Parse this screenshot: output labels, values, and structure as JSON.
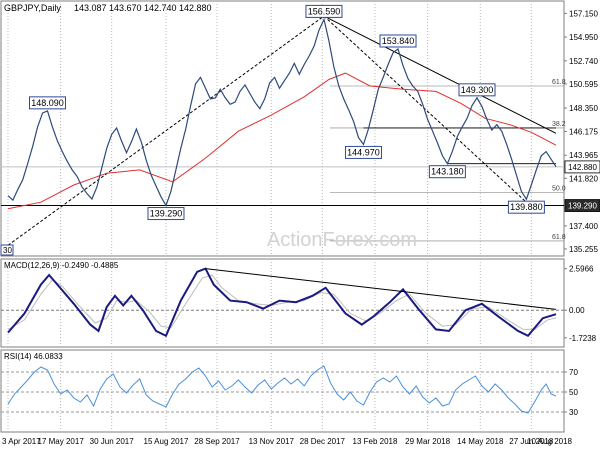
{
  "chart_data": {
    "type": "line",
    "title": "GBPJPY,Daily",
    "ohlc": {
      "open": "143.087",
      "high": "143.670",
      "low": "142.740",
      "close": "142.880"
    },
    "watermark": "ActionForex.com",
    "x_ticks": [
      "3 Apr 2017",
      "17 May 2017",
      "30 Jun 2017",
      "15 Aug 2017",
      "28 Sep 2017",
      "13 Nov 2017",
      "28 Dec 2017",
      "13 Feb 2018",
      "29 Mar 2018",
      "14 May 2018",
      "27 Jun 2018",
      "10 Aug 2018"
    ],
    "price_axis": {
      "ylim": [
        134.6,
        158.3
      ],
      "ticks": [
        "157.150",
        "154.950",
        "152.740",
        "150.595",
        "148.350",
        "146.175",
        "143.965",
        "141.820",
        "137.400",
        "135.255"
      ]
    },
    "price_series": [
      {
        "d": 0,
        "v": 140.2
      },
      {
        "d": 3,
        "v": 139.8
      },
      {
        "d": 6,
        "v": 140.8
      },
      {
        "d": 9,
        "v": 141.7
      },
      {
        "d": 12,
        "v": 143.2
      },
      {
        "d": 15,
        "v": 144.8
      },
      {
        "d": 18,
        "v": 146.6
      },
      {
        "d": 21,
        "v": 147.9
      },
      {
        "d": 24,
        "v": 148.09
      },
      {
        "d": 27,
        "v": 146.6
      },
      {
        "d": 30,
        "v": 145.3
      },
      {
        "d": 33,
        "v": 144.3
      },
      {
        "d": 36,
        "v": 143.4
      },
      {
        "d": 39,
        "v": 142.6
      },
      {
        "d": 42,
        "v": 142.0
      },
      {
        "d": 45,
        "v": 141.0
      },
      {
        "d": 48,
        "v": 140.4
      },
      {
        "d": 51,
        "v": 139.9
      },
      {
        "d": 54,
        "v": 141.0
      },
      {
        "d": 57,
        "v": 142.8
      },
      {
        "d": 60,
        "v": 144.6
      },
      {
        "d": 63,
        "v": 145.9
      },
      {
        "d": 66,
        "v": 146.5
      },
      {
        "d": 69,
        "v": 145.3
      },
      {
        "d": 72,
        "v": 144.2
      },
      {
        "d": 75,
        "v": 145.2
      },
      {
        "d": 78,
        "v": 146.4
      },
      {
        "d": 81,
        "v": 145.2
      },
      {
        "d": 84,
        "v": 143.5
      },
      {
        "d": 87,
        "v": 142.1
      },
      {
        "d": 90,
        "v": 141.1
      },
      {
        "d": 93,
        "v": 140.1
      },
      {
        "d": 96,
        "v": 139.29
      },
      {
        "d": 99,
        "v": 140.6
      },
      {
        "d": 102,
        "v": 142.6
      },
      {
        "d": 105,
        "v": 144.6
      },
      {
        "d": 108,
        "v": 146.4
      },
      {
        "d": 111,
        "v": 148.6
      },
      {
        "d": 114,
        "v": 150.6
      },
      {
        "d": 117,
        "v": 151.2
      },
      {
        "d": 120,
        "v": 150.2
      },
      {
        "d": 123,
        "v": 149.2
      },
      {
        "d": 126,
        "v": 149.3
      },
      {
        "d": 129,
        "v": 150.1
      },
      {
        "d": 132,
        "v": 149.3
      },
      {
        "d": 135,
        "v": 148.7
      },
      {
        "d": 138,
        "v": 148.9
      },
      {
        "d": 141,
        "v": 149.9
      },
      {
        "d": 144,
        "v": 150.5
      },
      {
        "d": 147,
        "v": 149.7
      },
      {
        "d": 150,
        "v": 148.9
      },
      {
        "d": 153,
        "v": 148.3
      },
      {
        "d": 156,
        "v": 149.2
      },
      {
        "d": 159,
        "v": 150.7
      },
      {
        "d": 162,
        "v": 151.2
      },
      {
        "d": 165,
        "v": 150.2
      },
      {
        "d": 168,
        "v": 150.9
      },
      {
        "d": 171,
        "v": 151.6
      },
      {
        "d": 174,
        "v": 152.5
      },
      {
        "d": 177,
        "v": 151.5
      },
      {
        "d": 180,
        "v": 152.4
      },
      {
        "d": 183,
        "v": 153.2
      },
      {
        "d": 186,
        "v": 154.1
      },
      {
        "d": 189,
        "v": 155.6
      },
      {
        "d": 192,
        "v": 156.59
      },
      {
        "d": 195,
        "v": 154.6
      },
      {
        "d": 198,
        "v": 152.2
      },
      {
        "d": 201,
        "v": 150.4
      },
      {
        "d": 204,
        "v": 149.2
      },
      {
        "d": 207,
        "v": 148.2
      },
      {
        "d": 210,
        "v": 147.1
      },
      {
        "d": 213,
        "v": 145.6
      },
      {
        "d": 216,
        "v": 144.97
      },
      {
        "d": 219,
        "v": 146.4
      },
      {
        "d": 222,
        "v": 148.2
      },
      {
        "d": 225,
        "v": 150.1
      },
      {
        "d": 228,
        "v": 151.2
      },
      {
        "d": 231,
        "v": 152.4
      },
      {
        "d": 234,
        "v": 153.5
      },
      {
        "d": 237,
        "v": 153.84
      },
      {
        "d": 240,
        "v": 152.3
      },
      {
        "d": 243,
        "v": 151.1
      },
      {
        "d": 246,
        "v": 150.4
      },
      {
        "d": 249,
        "v": 149.9
      },
      {
        "d": 252,
        "v": 148.7
      },
      {
        "d": 255,
        "v": 147.3
      },
      {
        "d": 258,
        "v": 146.2
      },
      {
        "d": 261,
        "v": 145.1
      },
      {
        "d": 264,
        "v": 143.9
      },
      {
        "d": 267,
        "v": 143.18
      },
      {
        "d": 270,
        "v": 144.3
      },
      {
        "d": 273,
        "v": 145.7
      },
      {
        "d": 276,
        "v": 146.6
      },
      {
        "d": 279,
        "v": 147.4
      },
      {
        "d": 282,
        "v": 148.6
      },
      {
        "d": 285,
        "v": 149.3
      },
      {
        "d": 288,
        "v": 148.5
      },
      {
        "d": 291,
        "v": 147.3
      },
      {
        "d": 294,
        "v": 146.3
      },
      {
        "d": 297,
        "v": 146.8
      },
      {
        "d": 300,
        "v": 146.2
      },
      {
        "d": 303,
        "v": 145.0
      },
      {
        "d": 306,
        "v": 143.6
      },
      {
        "d": 309,
        "v": 142.1
      },
      {
        "d": 312,
        "v": 140.6
      },
      {
        "d": 315,
        "v": 139.88
      },
      {
        "d": 318,
        "v": 141.2
      },
      {
        "d": 321,
        "v": 142.6
      },
      {
        "d": 324,
        "v": 143.9
      },
      {
        "d": 327,
        "v": 144.3
      },
      {
        "d": 330,
        "v": 143.6
      },
      {
        "d": 333,
        "v": 142.9
      }
    ],
    "ma_series": [
      {
        "d": 0,
        "v": 139.0
      },
      {
        "d": 20,
        "v": 139.6
      },
      {
        "d": 40,
        "v": 141.2
      },
      {
        "d": 60,
        "v": 142.3
      },
      {
        "d": 80,
        "v": 142.6
      },
      {
        "d": 100,
        "v": 141.5
      },
      {
        "d": 120,
        "v": 143.7
      },
      {
        "d": 140,
        "v": 146.2
      },
      {
        "d": 160,
        "v": 147.7
      },
      {
        "d": 180,
        "v": 149.4
      },
      {
        "d": 195,
        "v": 151.0
      },
      {
        "d": 205,
        "v": 151.6
      },
      {
        "d": 220,
        "v": 150.4
      },
      {
        "d": 240,
        "v": 150.1
      },
      {
        "d": 260,
        "v": 149.9
      },
      {
        "d": 275,
        "v": 148.8
      },
      {
        "d": 290,
        "v": 147.4
      },
      {
        "d": 305,
        "v": 146.8
      },
      {
        "d": 318,
        "v": 146.1
      },
      {
        "d": 333,
        "v": 144.9
      }
    ],
    "price_labels": [
      {
        "d": 24,
        "v": 148.09,
        "text": "148.090"
      },
      {
        "d": 96,
        "v": 139.29,
        "text": "139.290"
      },
      {
        "d": 192,
        "v": 156.59,
        "text": "156.590"
      },
      {
        "d": 216,
        "v": 144.97,
        "text": "144.970"
      },
      {
        "d": 237,
        "v": 153.84,
        "text": "153.840"
      },
      {
        "d": 267,
        "v": 143.18,
        "text": "143.180"
      },
      {
        "d": 285,
        "v": 149.3,
        "text": "149.300"
      },
      {
        "d": 315,
        "v": 139.88,
        "text": "139.880"
      }
    ],
    "fib_levels": [
      {
        "v": 150.4,
        "text": "61.8"
      },
      {
        "v": 146.5,
        "text": "38.2"
      },
      {
        "v": 140.5,
        "text": "50.0"
      },
      {
        "v": 136.0,
        "text": "61.8"
      }
    ],
    "current_price": {
      "v": 142.88,
      "text": "142.880"
    },
    "support_price": {
      "v": 139.29,
      "text": "139.290"
    },
    "corner_label": "30",
    "macd": {
      "label": "MACD(12,26,9) -0.2490 -0.4885",
      "ylim": [
        -2.3,
        3.2
      ],
      "ticks": [
        "2.5966",
        "0.00",
        "-1.7238"
      ],
      "line": [
        {
          "d": 0,
          "v": -1.4
        },
        {
          "d": 10,
          "v": -0.2
        },
        {
          "d": 20,
          "v": 1.6
        },
        {
          "d": 25,
          "v": 2.2
        },
        {
          "d": 30,
          "v": 1.6
        },
        {
          "d": 40,
          "v": 0.4
        },
        {
          "d": 50,
          "v": -0.9
        },
        {
          "d": 55,
          "v": -1.3
        },
        {
          "d": 60,
          "v": 0.2
        },
        {
          "d": 65,
          "v": 0.9
        },
        {
          "d": 70,
          "v": 0.3
        },
        {
          "d": 75,
          "v": 0.9
        },
        {
          "d": 82,
          "v": 0.0
        },
        {
          "d": 90,
          "v": -1.3
        },
        {
          "d": 96,
          "v": -1.6
        },
        {
          "d": 105,
          "v": 0.6
        },
        {
          "d": 115,
          "v": 2.4
        },
        {
          "d": 120,
          "v": 2.6
        },
        {
          "d": 125,
          "v": 1.6
        },
        {
          "d": 135,
          "v": 0.6
        },
        {
          "d": 145,
          "v": 0.5
        },
        {
          "d": 155,
          "v": 0.1
        },
        {
          "d": 165,
          "v": 0.6
        },
        {
          "d": 175,
          "v": 0.5
        },
        {
          "d": 185,
          "v": 0.9
        },
        {
          "d": 193,
          "v": 1.4
        },
        {
          "d": 205,
          "v": -0.2
        },
        {
          "d": 215,
          "v": -0.9
        },
        {
          "d": 222,
          "v": -0.4
        },
        {
          "d": 232,
          "v": 0.5
        },
        {
          "d": 240,
          "v": 1.3
        },
        {
          "d": 250,
          "v": 0.0
        },
        {
          "d": 260,
          "v": -1.2
        },
        {
          "d": 268,
          "v": -1.3
        },
        {
          "d": 278,
          "v": 0.0
        },
        {
          "d": 288,
          "v": 0.4
        },
        {
          "d": 298,
          "v": -0.4
        },
        {
          "d": 310,
          "v": -1.3
        },
        {
          "d": 316,
          "v": -1.6
        },
        {
          "d": 325,
          "v": -0.5
        },
        {
          "d": 333,
          "v": -0.25
        }
      ],
      "signal": [
        {
          "d": 0,
          "v": -1.2
        },
        {
          "d": 10,
          "v": -0.6
        },
        {
          "d": 20,
          "v": 1.0
        },
        {
          "d": 27,
          "v": 1.9
        },
        {
          "d": 33,
          "v": 1.5
        },
        {
          "d": 43,
          "v": 0.3
        },
        {
          "d": 53,
          "v": -0.8
        },
        {
          "d": 60,
          "v": -0.5
        },
        {
          "d": 66,
          "v": 0.6
        },
        {
          "d": 72,
          "v": 0.5
        },
        {
          "d": 78,
          "v": 0.6
        },
        {
          "d": 86,
          "v": -0.1
        },
        {
          "d": 93,
          "v": -1.0
        },
        {
          "d": 99,
          "v": -1.1
        },
        {
          "d": 108,
          "v": 0.4
        },
        {
          "d": 118,
          "v": 2.0
        },
        {
          "d": 124,
          "v": 2.2
        },
        {
          "d": 130,
          "v": 1.4
        },
        {
          "d": 140,
          "v": 0.6
        },
        {
          "d": 150,
          "v": 0.4
        },
        {
          "d": 160,
          "v": 0.3
        },
        {
          "d": 170,
          "v": 0.5
        },
        {
          "d": 180,
          "v": 0.6
        },
        {
          "d": 190,
          "v": 1.1
        },
        {
          "d": 198,
          "v": 1.0
        },
        {
          "d": 208,
          "v": -0.2
        },
        {
          "d": 218,
          "v": -0.7
        },
        {
          "d": 226,
          "v": -0.2
        },
        {
          "d": 236,
          "v": 0.6
        },
        {
          "d": 244,
          "v": 1.0
        },
        {
          "d": 254,
          "v": -0.2
        },
        {
          "d": 264,
          "v": -1.0
        },
        {
          "d": 272,
          "v": -0.9
        },
        {
          "d": 282,
          "v": 0.1
        },
        {
          "d": 292,
          "v": 0.2
        },
        {
          "d": 302,
          "v": -0.5
        },
        {
          "d": 313,
          "v": -1.2
        },
        {
          "d": 320,
          "v": -1.2
        },
        {
          "d": 328,
          "v": -0.6
        },
        {
          "d": 333,
          "v": -0.49
        }
      ],
      "trendline": [
        {
          "d": 120,
          "v": 2.6
        },
        {
          "d": 333,
          "v": 0.05
        }
      ]
    },
    "rsi": {
      "label": "RSI(14) 46.0833",
      "ylim": [
        10,
        92
      ],
      "ticks": [
        "70",
        "50",
        "30"
      ],
      "line": [
        {
          "d": 0,
          "v": 38
        },
        {
          "d": 4,
          "v": 48
        },
        {
          "d": 8,
          "v": 55
        },
        {
          "d": 12,
          "v": 62
        },
        {
          "d": 16,
          "v": 70
        },
        {
          "d": 20,
          "v": 75
        },
        {
          "d": 24,
          "v": 72
        },
        {
          "d": 28,
          "v": 58
        },
        {
          "d": 32,
          "v": 48
        },
        {
          "d": 36,
          "v": 52
        },
        {
          "d": 40,
          "v": 44
        },
        {
          "d": 44,
          "v": 40
        },
        {
          "d": 48,
          "v": 47
        },
        {
          "d": 52,
          "v": 36
        },
        {
          "d": 56,
          "v": 53
        },
        {
          "d": 60,
          "v": 63
        },
        {
          "d": 64,
          "v": 68
        },
        {
          "d": 68,
          "v": 55
        },
        {
          "d": 72,
          "v": 49
        },
        {
          "d": 76,
          "v": 57
        },
        {
          "d": 80,
          "v": 63
        },
        {
          "d": 84,
          "v": 47
        },
        {
          "d": 88,
          "v": 41
        },
        {
          "d": 92,
          "v": 38
        },
        {
          "d": 96,
          "v": 35
        },
        {
          "d": 100,
          "v": 48
        },
        {
          "d": 104,
          "v": 58
        },
        {
          "d": 108,
          "v": 63
        },
        {
          "d": 112,
          "v": 70
        },
        {
          "d": 116,
          "v": 74
        },
        {
          "d": 120,
          "v": 66
        },
        {
          "d": 124,
          "v": 55
        },
        {
          "d": 128,
          "v": 61
        },
        {
          "d": 132,
          "v": 52
        },
        {
          "d": 136,
          "v": 56
        },
        {
          "d": 140,
          "v": 62
        },
        {
          "d": 144,
          "v": 55
        },
        {
          "d": 148,
          "v": 49
        },
        {
          "d": 152,
          "v": 57
        },
        {
          "d": 156,
          "v": 62
        },
        {
          "d": 160,
          "v": 53
        },
        {
          "d": 164,
          "v": 59
        },
        {
          "d": 168,
          "v": 64
        },
        {
          "d": 172,
          "v": 58
        },
        {
          "d": 176,
          "v": 63
        },
        {
          "d": 180,
          "v": 56
        },
        {
          "d": 184,
          "v": 66
        },
        {
          "d": 188,
          "v": 72
        },
        {
          "d": 192,
          "v": 76
        },
        {
          "d": 196,
          "v": 59
        },
        {
          "d": 200,
          "v": 48
        },
        {
          "d": 204,
          "v": 42
        },
        {
          "d": 208,
          "v": 50
        },
        {
          "d": 212,
          "v": 41
        },
        {
          "d": 216,
          "v": 37
        },
        {
          "d": 220,
          "v": 50
        },
        {
          "d": 224,
          "v": 60
        },
        {
          "d": 228,
          "v": 64
        },
        {
          "d": 232,
          "v": 60
        },
        {
          "d": 236,
          "v": 66
        },
        {
          "d": 240,
          "v": 55
        },
        {
          "d": 244,
          "v": 48
        },
        {
          "d": 248,
          "v": 56
        },
        {
          "d": 252,
          "v": 45
        },
        {
          "d": 256,
          "v": 39
        },
        {
          "d": 260,
          "v": 44
        },
        {
          "d": 264,
          "v": 36
        },
        {
          "d": 268,
          "v": 38
        },
        {
          "d": 272,
          "v": 52
        },
        {
          "d": 276,
          "v": 58
        },
        {
          "d": 280,
          "v": 62
        },
        {
          "d": 284,
          "v": 66
        },
        {
          "d": 288,
          "v": 56
        },
        {
          "d": 292,
          "v": 50
        },
        {
          "d": 296,
          "v": 58
        },
        {
          "d": 300,
          "v": 52
        },
        {
          "d": 304,
          "v": 44
        },
        {
          "d": 308,
          "v": 38
        },
        {
          "d": 312,
          "v": 31
        },
        {
          "d": 316,
          "v": 29
        },
        {
          "d": 320,
          "v": 40
        },
        {
          "d": 324,
          "v": 52
        },
        {
          "d": 327,
          "v": 58
        },
        {
          "d": 330,
          "v": 48
        },
        {
          "d": 333,
          "v": 46
        }
      ]
    },
    "colors": {
      "price": "#2e4a7a",
      "ma": "#e03030",
      "macd": "#1a1a80",
      "signal": "#bdbdbd",
      "rsi": "#4a90d9",
      "label_border": "#2e4a9a"
    }
  }
}
